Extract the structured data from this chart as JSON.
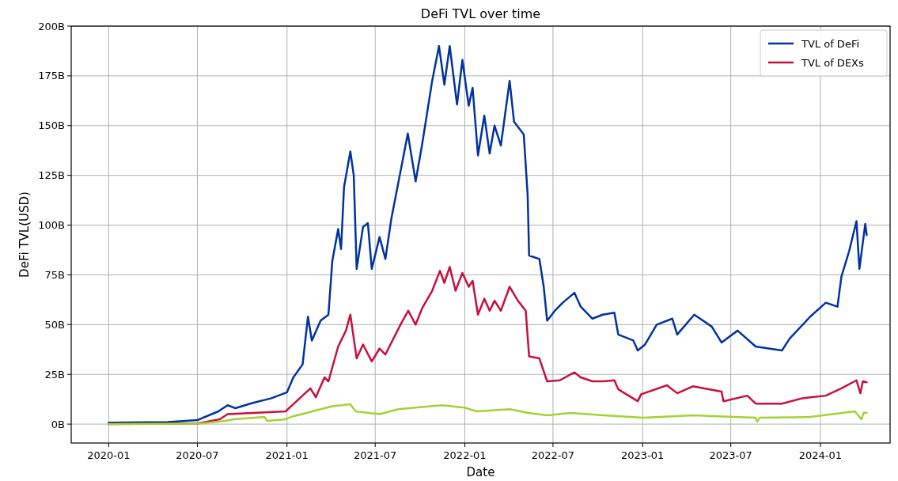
{
  "chart_data": {
    "type": "line",
    "title": "DeFi TVL over time",
    "xlabel": "Date",
    "ylabel": "DeFi TVL(USD)",
    "xlim": [
      "2019-10-16",
      "2024-05-23"
    ],
    "ylim": [
      -9.5,
      200
    ],
    "xticks": [
      "2020-01",
      "2020-07",
      "2021-01",
      "2021-07",
      "2022-01",
      "2022-07",
      "2023-01",
      "2023-07",
      "2024-01"
    ],
    "yticks": [
      {
        "value": 0,
        "label": "0B"
      },
      {
        "value": 25,
        "label": "25B"
      },
      {
        "value": 50,
        "label": "50B"
      },
      {
        "value": 75,
        "label": "75B"
      },
      {
        "value": 100,
        "label": "100B"
      },
      {
        "value": 125,
        "label": "125B"
      },
      {
        "value": 150,
        "label": "150B"
      },
      {
        "value": 175,
        "label": "175B"
      },
      {
        "value": 200,
        "label": "200B"
      }
    ],
    "grid": true,
    "legend": "top right",
    "line_style": "solid",
    "series": [
      {
        "name": "TVL of DeFi",
        "color": "#0033a0",
        "x": [
          "2020-01-01",
          "2020-05-01",
          "2020-07-01",
          "2020-08-13",
          "2020-09-01",
          "2020-09-17",
          "2020-10-20",
          "2020-11-30",
          "2021-01-01",
          "2021-01-14",
          "2021-02-02",
          "2021-02-13",
          "2021-02-21",
          "2021-03-11",
          "2021-03-27",
          "2021-04-04",
          "2021-04-16",
          "2021-04-22",
          "2021-04-28",
          "2021-05-11",
          "2021-05-18",
          "2021-05-24",
          "2021-06-06",
          "2021-06-16",
          "2021-06-24",
          "2021-07-10",
          "2021-07-22",
          "2021-08-03",
          "2021-08-22",
          "2021-09-06",
          "2021-09-22",
          "2021-10-05",
          "2021-10-26",
          "2021-11-09",
          "2021-11-20",
          "2021-12-01",
          "2021-12-16",
          "2021-12-27",
          "2022-01-09",
          "2022-01-17",
          "2022-01-28",
          "2022-02-10",
          "2022-02-21",
          "2022-03-03",
          "2022-03-16",
          "2022-04-03",
          "2022-04-12",
          "2022-05-02",
          "2022-05-10",
          "2022-05-13",
          "2022-06-03",
          "2022-06-12",
          "2022-06-19",
          "2022-07-05",
          "2022-07-21",
          "2022-08-14",
          "2022-08-27",
          "2022-09-20",
          "2022-10-11",
          "2022-11-04",
          "2022-11-12",
          "2022-12-13",
          "2022-12-22",
          "2023-01-06",
          "2023-01-30",
          "2023-03-03",
          "2023-03-13",
          "2023-04-17",
          "2023-05-23",
          "2023-06-12",
          "2023-07-15",
          "2023-08-21",
          "2023-10-14",
          "2023-10-30",
          "2023-12-11",
          "2024-01-12",
          "2024-02-05",
          "2024-02-13",
          "2024-02-29",
          "2024-03-15",
          "2024-03-21",
          "2024-04-02",
          "2024-04-05"
        ],
        "values": [
          0.7,
          1,
          2,
          6.4,
          9.5,
          8,
          10.5,
          13,
          16,
          23.5,
          30,
          54,
          42,
          52,
          55,
          82,
          98,
          88,
          119,
          137,
          125,
          78,
          99,
          101,
          78,
          94,
          83,
          103,
          127,
          146,
          122,
          140,
          172.5,
          190,
          170.6,
          190,
          160.6,
          183,
          160,
          169,
          135,
          155,
          136,
          150,
          140,
          172.5,
          152,
          145.5,
          115,
          84.7,
          83,
          69,
          52,
          57,
          61,
          66,
          59,
          53,
          55,
          56,
          45,
          42,
          37,
          40,
          50,
          53,
          45,
          55,
          49,
          41,
          47,
          39,
          37,
          43,
          54,
          61,
          59,
          74,
          87,
          102,
          78,
          100.6,
          95
        ]
      },
      {
        "name": "TVL of DEXs",
        "color": "#c8103e",
        "x": [
          "2020-01-01",
          "2020-07-01",
          "2020-08-16",
          "2020-09-01",
          "2020-12-29",
          "2021-01-14",
          "2021-02-18",
          "2021-03-01",
          "2021-03-19",
          "2021-03-27",
          "2021-04-16",
          "2021-05-02",
          "2021-05-11",
          "2021-05-24",
          "2021-06-06",
          "2021-06-24",
          "2021-07-10",
          "2021-07-22",
          "2021-08-22",
          "2021-09-07",
          "2021-09-22",
          "2021-10-05",
          "2021-10-26",
          "2021-11-11",
          "2021-11-20",
          "2021-12-01",
          "2021-12-13",
          "2021-12-27",
          "2022-01-09",
          "2022-01-17",
          "2022-01-28",
          "2022-02-10",
          "2022-02-21",
          "2022-03-03",
          "2022-03-16",
          "2022-04-03",
          "2022-04-20",
          "2022-05-06",
          "2022-05-13",
          "2022-06-03",
          "2022-06-19",
          "2022-07-15",
          "2022-08-14",
          "2022-08-27",
          "2022-09-20",
          "2022-10-11",
          "2022-11-04",
          "2022-11-12",
          "2022-12-22",
          "2022-12-29",
          "2023-02-20",
          "2023-03-13",
          "2023-04-14",
          "2023-06-12",
          "2023-06-16",
          "2023-08-04",
          "2023-08-21",
          "2023-10-14",
          "2023-11-25",
          "2023-12-11",
          "2024-01-12",
          "2024-02-13",
          "2024-03-15",
          "2024-03-23",
          "2024-03-28",
          "2024-04-05"
        ],
        "values": [
          0,
          0.3,
          2.4,
          5,
          6.4,
          10,
          18,
          13.5,
          23.5,
          21.5,
          39,
          47,
          55,
          33,
          40,
          31.5,
          38,
          35,
          50,
          57,
          50,
          58,
          67,
          77,
          71,
          79,
          67,
          76,
          69,
          72,
          55,
          63,
          57,
          62,
          57,
          69,
          62,
          57,
          34,
          33,
          21.5,
          22,
          26,
          23.5,
          21.5,
          21.5,
          22,
          17.5,
          11.5,
          15,
          19.5,
          15.5,
          19,
          16.3,
          11.5,
          14.3,
          10.3,
          10.3,
          13,
          13.5,
          14.3,
          18,
          22,
          15.5,
          21.5,
          21
        ]
      },
      {
        "color": "#a4d233",
        "x": [
          "2020-01-01",
          "2020-07-01",
          "2020-08-28",
          "2020-09-13",
          "2020-11-16",
          "2020-11-21",
          "2020-12-29",
          "2021-01-09",
          "2021-04-04",
          "2021-05-11",
          "2021-05-22",
          "2021-07-10",
          "2021-08-17",
          "2021-11-15",
          "2022-01-01",
          "2022-01-25",
          "2022-04-04",
          "2022-05-11",
          "2022-06-19",
          "2022-08-06",
          "2022-10-14",
          "2023-01-02",
          "2023-04-14",
          "2023-08-21",
          "2023-08-24",
          "2023-08-29",
          "2023-12-11",
          "2024-03-12",
          "2024-03-25",
          "2024-03-30",
          "2024-04-05"
        ],
        "values": [
          0,
          0.2,
          1.6,
          2.4,
          3.6,
          1.6,
          2.4,
          3.6,
          9,
          10,
          6.4,
          5,
          7.5,
          9.5,
          8.3,
          6.4,
          7.5,
          5.6,
          4.4,
          5.6,
          4.4,
          3.2,
          4.4,
          3.2,
          1.2,
          3.2,
          3.6,
          6.4,
          2.4,
          5.8,
          5.6
        ]
      }
    ]
  }
}
